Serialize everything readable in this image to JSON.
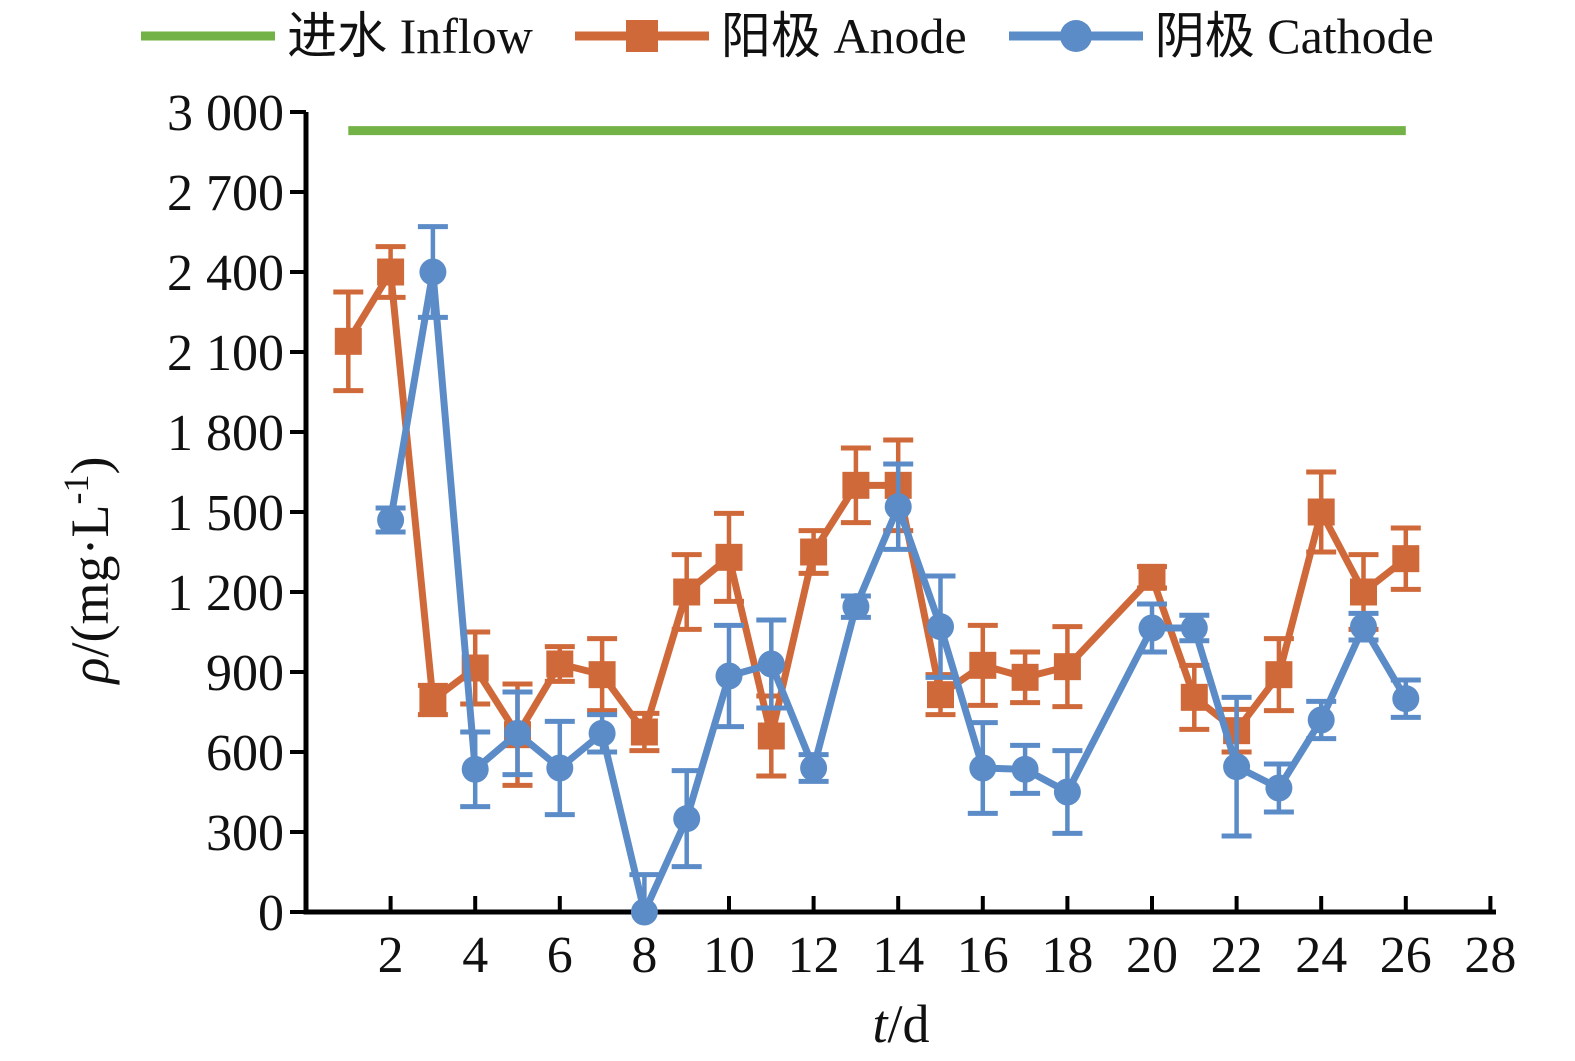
{
  "legend": {
    "items": [
      {
        "label": "进水 Inflow",
        "color": "#72b246",
        "marker": "none"
      },
      {
        "label": "阳极 Anode",
        "color": "#d0693a",
        "marker": "square"
      },
      {
        "label": "阴极 Cathode",
        "color": "#5b8cc8",
        "marker": "circle"
      }
    ]
  },
  "axes": {
    "y_label": {
      "symbol": "ρ",
      "unit": "/(mg·L",
      "sup": "-1",
      "close": ")"
    },
    "x_label": {
      "symbol": "t",
      "unit": "/d"
    }
  },
  "chart_data": {
    "type": "line",
    "title": "",
    "xlabel": "t/d",
    "ylabel": "ρ/(mg·L⁻¹)",
    "xlim": [
      0,
      28.4
    ],
    "ylim": [
      0,
      3000
    ],
    "grid": false,
    "legend_position": "top",
    "x_ticks": [
      2,
      4,
      6,
      8,
      10,
      12,
      14,
      16,
      18,
      20,
      22,
      24,
      26,
      28
    ],
    "y_ticks": [
      0,
      300,
      600,
      900,
      1200,
      1500,
      1800,
      2100,
      2400,
      2700,
      3000
    ],
    "y_tick_labels": [
      "0",
      "300",
      "600",
      "900",
      "1 200",
      "1 500",
      "1 800",
      "2 100",
      "2 400",
      "2 700",
      "3 000"
    ],
    "inflow": {
      "name": "进水 Inflow",
      "value": 2930,
      "x_start": 1,
      "x_end": 26,
      "color": "#72b246"
    },
    "series": [
      {
        "name": "阳极 Anode",
        "color": "#d0693a",
        "marker": "square",
        "points": [
          {
            "x": 1,
            "y": 2140,
            "e": 185
          },
          {
            "x": 2,
            "y": 2400,
            "e": 95
          },
          {
            "x": 3,
            "y": 795,
            "e": 55
          },
          {
            "x": 4,
            "y": 915,
            "e": 135
          },
          {
            "x": 5,
            "y": 665,
            "e": 190
          },
          {
            "x": 6,
            "y": 930,
            "e": 65
          },
          {
            "x": 7,
            "y": 890,
            "e": 135
          },
          {
            "x": 8,
            "y": 675,
            "e": 70
          },
          {
            "x": 9,
            "y": 1200,
            "e": 140
          },
          {
            "x": 10,
            "y": 1330,
            "e": 165
          },
          {
            "x": 11,
            "y": 660,
            "e": 150
          },
          {
            "x": 12,
            "y": 1350,
            "e": 80
          },
          {
            "x": 13,
            "y": 1600,
            "e": 140
          },
          {
            "x": 14,
            "y": 1600,
            "e": 170
          },
          {
            "x": 15,
            "y": 815,
            "e": 75
          },
          {
            "x": 16,
            "y": 925,
            "e": 150
          },
          {
            "x": 17,
            "y": 880,
            "e": 95
          },
          {
            "x": 18,
            "y": 920,
            "e": 150
          },
          {
            "x": 20,
            "y": 1255,
            "e": 40
          },
          {
            "x": 21,
            "y": 805,
            "e": 120
          },
          {
            "x": 22,
            "y": 680,
            "e": 80
          },
          {
            "x": 23,
            "y": 890,
            "e": 135
          },
          {
            "x": 24,
            "y": 1500,
            "e": 150
          },
          {
            "x": 25,
            "y": 1200,
            "e": 140
          },
          {
            "x": 26,
            "y": 1325,
            "e": 115
          }
        ]
      },
      {
        "name": "阴极 Cathode",
        "color": "#5b8cc8",
        "marker": "circle",
        "points": [
          {
            "x": 2,
            "y": 1470,
            "e": 45
          },
          {
            "x": 3,
            "y": 2400,
            "e": 170
          },
          {
            "x": 4,
            "y": 535,
            "e": 140
          },
          {
            "x": 5,
            "y": 670,
            "e": 155
          },
          {
            "x": 6,
            "y": 540,
            "e": 175
          },
          {
            "x": 7,
            "y": 670,
            "e": 70
          },
          {
            "x": 8,
            "y": 0,
            "e": 140
          },
          {
            "x": 9,
            "y": 350,
            "e": 180
          },
          {
            "x": 10,
            "y": 885,
            "e": 190
          },
          {
            "x": 11,
            "y": 930,
            "e": 165
          },
          {
            "x": 12,
            "y": 540,
            "e": 50
          },
          {
            "x": 13,
            "y": 1145,
            "e": 40
          },
          {
            "x": 14,
            "y": 1520,
            "e": 160
          },
          {
            "x": 15,
            "y": 1070,
            "e": 190
          },
          {
            "x": 16,
            "y": 540,
            "e": 170
          },
          {
            "x": 17,
            "y": 535,
            "e": 90
          },
          {
            "x": 18,
            "y": 450,
            "e": 155
          },
          {
            "x": 20,
            "y": 1065,
            "e": 90
          },
          {
            "x": 21,
            "y": 1065,
            "e": 48
          },
          {
            "x": 22,
            "y": 545,
            "e": 260
          },
          {
            "x": 23,
            "y": 465,
            "e": 90
          },
          {
            "x": 24,
            "y": 720,
            "e": 70
          },
          {
            "x": 25,
            "y": 1070,
            "e": 50
          },
          {
            "x": 26,
            "y": 800,
            "e": 70
          }
        ]
      }
    ]
  }
}
